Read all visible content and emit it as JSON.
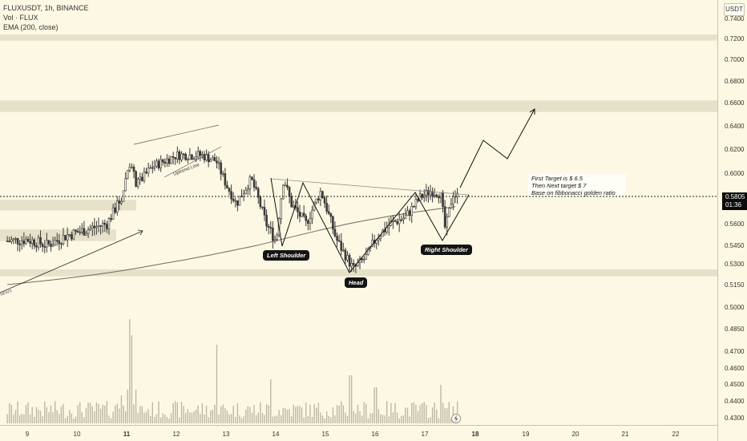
{
  "legend": {
    "symbol": "FLUXUSDT, 1h, BINANCE",
    "volume": "Vol · FLUX",
    "ema": "EMA (200, close)"
  },
  "currency_button": "USDT",
  "last_price": {
    "value": "0.5805",
    "countdown": "01:36"
  },
  "note": {
    "line1": "First Target is $ 6.5",
    "line2": "Then Next target $ 7",
    "line3": "Base on fibbonacci golden ratio"
  },
  "labels": {
    "left_shoulder": "Left Shoulder",
    "head": "Head",
    "right_shoulder": "Right Shoulder",
    "uptrend_line": "Uptrend Line",
    "news": "NEWS"
  },
  "colors": {
    "background": "#fdf8e3",
    "zone": "#e6e1c8",
    "candle": "#3a3a3a",
    "volume": "#bdb8a4",
    "ema": "#6f6a5c"
  },
  "chart_data": {
    "type": "candlestick",
    "symbol": "FLUXUSDT",
    "interval": "1h",
    "exchange": "BINANCE",
    "y_axis_ticks": [
      "0.7400",
      "0.7200",
      "0.7000",
      "0.6800",
      "0.6600",
      "0.6400",
      "0.6200",
      "0.6000",
      "0.5805",
      "0.5600",
      "0.5450",
      "0.5300",
      "0.5150",
      "0.5000",
      "0.4850",
      "0.4700",
      "0.4600",
      "0.4500",
      "0.4400",
      "0.4300"
    ],
    "x_axis_ticks": [
      "9",
      "10",
      "11",
      "12",
      "13",
      "14",
      "15",
      "16",
      "17",
      "18",
      "19",
      "20",
      "21",
      "22"
    ],
    "last_price": 0.5805,
    "support_resistance_zones": [
      {
        "from": 0.718,
        "to": 0.724
      },
      {
        "from": 0.652,
        "to": 0.662
      },
      {
        "from": 0.57,
        "to": 0.578
      },
      {
        "from": 0.548,
        "to": 0.556
      },
      {
        "from": 0.521,
        "to": 0.526
      }
    ],
    "pattern": "Inverse Head and Shoulders",
    "pivots": [
      {
        "label": "Left Shoulder",
        "day": 14.1,
        "price": 0.542
      },
      {
        "label": "Head",
        "day": 15.55,
        "price": 0.522
      },
      {
        "label": "Right Shoulder",
        "day": 17.4,
        "price": 0.546
      }
    ],
    "projection_price": 0.653,
    "price_range": [
      0.5,
      0.64
    ],
    "targets": [
      6.5,
      7
    ]
  }
}
